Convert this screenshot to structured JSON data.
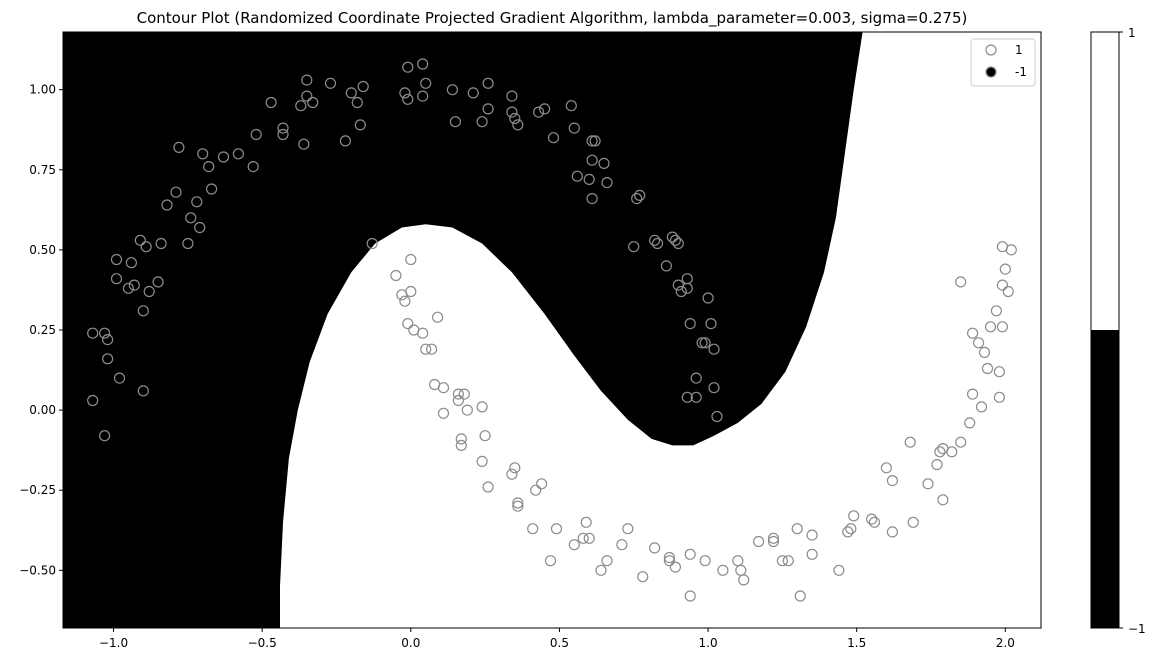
{
  "chart_data": {
    "type": "scatter",
    "title": "Contour Plot (Randomized Coordinate Projected Gradient Algorithm, lambda_parameter=0.003, sigma=0.275)",
    "xlabel": "",
    "ylabel": "",
    "xlim": [
      -1.17,
      2.12
    ],
    "ylim": [
      -0.68,
      1.18
    ],
    "x_ticks": [
      -1.0,
      -0.5,
      0.0,
      0.5,
      1.0,
      1.5,
      2.0
    ],
    "x_tick_labels": [
      "−1.0",
      "−0.5",
      "0.0",
      "0.5",
      "1.0",
      "1.5",
      "2.0"
    ],
    "y_ticks": [
      -0.5,
      -0.25,
      0.0,
      0.25,
      0.5,
      0.75,
      1.0
    ],
    "y_tick_labels": [
      "−0.50",
      "−0.25",
      "0.00",
      "0.25",
      "0.50",
      "0.75",
      "1.00"
    ],
    "grid": false,
    "legend_position": "top-right",
    "colors": {
      "region_neg": "#000000",
      "region_pos": "#ffffff",
      "marker_edge": "#8c8c8c",
      "marker_fill": "none"
    },
    "decision_region": {
      "description_free_fields": true,
      "boundary": [
        [
          -0.44,
          -0.68
        ],
        [
          -0.44,
          -0.55
        ],
        [
          -0.43,
          -0.35
        ],
        [
          -0.41,
          -0.15
        ],
        [
          -0.38,
          0.0
        ],
        [
          -0.34,
          0.15
        ],
        [
          -0.28,
          0.3
        ],
        [
          -0.2,
          0.43
        ],
        [
          -0.12,
          0.52
        ],
        [
          -0.03,
          0.57
        ],
        [
          0.05,
          0.58
        ],
        [
          0.14,
          0.57
        ],
        [
          0.24,
          0.52
        ],
        [
          0.34,
          0.43
        ],
        [
          0.45,
          0.3
        ],
        [
          0.55,
          0.17
        ],
        [
          0.64,
          0.06
        ],
        [
          0.73,
          -0.03
        ],
        [
          0.81,
          -0.09
        ],
        [
          0.88,
          -0.11
        ],
        [
          0.95,
          -0.11
        ],
        [
          1.02,
          -0.08
        ],
        [
          1.1,
          -0.04
        ],
        [
          1.18,
          0.02
        ],
        [
          1.26,
          0.12
        ],
        [
          1.33,
          0.26
        ],
        [
          1.39,
          0.43
        ],
        [
          1.43,
          0.6
        ],
        [
          1.46,
          0.8
        ],
        [
          1.49,
          1.0
        ],
        [
          1.52,
          1.18
        ]
      ]
    },
    "series": [
      {
        "name": "1",
        "marker": "open-circle",
        "points": [
          [
            -1.07,
            0.24
          ],
          [
            -1.07,
            0.03
          ],
          [
            -1.03,
            0.24
          ],
          [
            -1.02,
            0.16
          ],
          [
            -1.02,
            0.22
          ],
          [
            -1.03,
            -0.08
          ],
          [
            -0.99,
            0.47
          ],
          [
            -0.99,
            0.41
          ],
          [
            -0.98,
            0.1
          ],
          [
            -0.95,
            0.38
          ],
          [
            -0.94,
            0.46
          ],
          [
            -0.93,
            0.39
          ],
          [
            -0.91,
            0.53
          ],
          [
            -0.9,
            0.31
          ],
          [
            -0.9,
            0.06
          ],
          [
            -0.89,
            0.51
          ],
          [
            -0.88,
            0.37
          ],
          [
            -0.85,
            0.4
          ],
          [
            -0.84,
            0.52
          ],
          [
            -0.82,
            0.64
          ],
          [
            -0.79,
            0.68
          ],
          [
            -0.78,
            0.82
          ],
          [
            -0.75,
            0.52
          ],
          [
            -0.74,
            0.6
          ],
          [
            -0.72,
            0.65
          ],
          [
            -0.71,
            0.57
          ],
          [
            -0.7,
            0.8
          ],
          [
            -0.68,
            0.76
          ],
          [
            -0.67,
            0.69
          ],
          [
            -0.63,
            0.79
          ],
          [
            -0.58,
            0.8
          ],
          [
            -0.53,
            0.76
          ],
          [
            -0.52,
            0.86
          ],
          [
            -0.47,
            0.96
          ],
          [
            -0.43,
            0.86
          ],
          [
            -0.43,
            0.88
          ],
          [
            -0.37,
            0.95
          ],
          [
            -0.36,
            0.83
          ],
          [
            -0.35,
            0.98
          ],
          [
            -0.35,
            1.03
          ],
          [
            -0.33,
            0.96
          ],
          [
            -0.27,
            1.02
          ],
          [
            -0.22,
            0.84
          ],
          [
            -0.2,
            0.99
          ],
          [
            -0.18,
            0.96
          ],
          [
            -0.17,
            0.89
          ],
          [
            -0.16,
            1.01
          ],
          [
            -0.02,
            0.99
          ],
          [
            -0.01,
            0.97
          ],
          [
            -0.01,
            1.07
          ],
          [
            0.04,
            0.98
          ],
          [
            0.04,
            1.08
          ],
          [
            0.05,
            1.02
          ],
          [
            0.14,
            1.0
          ],
          [
            0.15,
            0.9
          ],
          [
            0.21,
            0.99
          ],
          [
            0.24,
            0.9
          ],
          [
            0.26,
            0.94
          ],
          [
            0.26,
            1.02
          ],
          [
            0.34,
            0.98
          ],
          [
            0.34,
            0.93
          ],
          [
            0.35,
            0.91
          ],
          [
            0.36,
            0.89
          ],
          [
            0.43,
            0.93
          ],
          [
            0.45,
            0.94
          ],
          [
            0.48,
            0.85
          ],
          [
            0.54,
            0.95
          ],
          [
            0.55,
            0.88
          ],
          [
            0.56,
            0.73
          ],
          [
            0.6,
            0.72
          ],
          [
            0.61,
            0.84
          ],
          [
            0.61,
            0.78
          ],
          [
            0.61,
            0.66
          ],
          [
            0.62,
            0.84
          ],
          [
            0.65,
            0.77
          ],
          [
            0.66,
            0.71
          ],
          [
            0.76,
            0.66
          ],
          [
            0.77,
            0.67
          ],
          [
            0.75,
            0.51
          ],
          [
            0.82,
            0.53
          ],
          [
            0.83,
            0.52
          ],
          [
            0.86,
            0.45
          ],
          [
            0.88,
            0.54
          ],
          [
            0.89,
            0.53
          ],
          [
            0.9,
            0.52
          ],
          [
            0.9,
            0.39
          ],
          [
            0.91,
            0.37
          ],
          [
            0.93,
            0.41
          ],
          [
            0.93,
            0.38
          ],
          [
            0.94,
            0.27
          ],
          [
            0.96,
            0.1
          ],
          [
            0.93,
            0.04
          ],
          [
            0.96,
            0.04
          ],
          [
            0.98,
            0.21
          ],
          [
            0.99,
            0.21
          ],
          [
            1.0,
            0.35
          ],
          [
            1.01,
            0.27
          ],
          [
            1.02,
            0.19
          ],
          [
            1.02,
            0.07
          ],
          [
            1.03,
            -0.02
          ],
          [
            -0.13,
            0.52
          ],
          [
            -0.05,
            0.42
          ],
          [
            -0.03,
            0.36
          ],
          [
            -0.02,
            0.34
          ],
          [
            -0.01,
            0.27
          ],
          [
            0.0,
            0.37
          ],
          [
            0.0,
            0.47
          ],
          [
            0.01,
            0.25
          ],
          [
            0.04,
            0.24
          ],
          [
            0.05,
            0.19
          ],
          [
            0.07,
            0.19
          ],
          [
            0.08,
            0.08
          ],
          [
            0.09,
            0.29
          ],
          [
            0.11,
            0.07
          ],
          [
            0.11,
            -0.01
          ],
          [
            0.16,
            0.03
          ],
          [
            0.16,
            0.05
          ],
          [
            0.18,
            0.05
          ],
          [
            0.17,
            -0.09
          ],
          [
            0.17,
            -0.11
          ],
          [
            0.19,
            0.0
          ],
          [
            0.24,
            0.01
          ],
          [
            0.25,
            -0.08
          ],
          [
            0.24,
            -0.16
          ],
          [
            0.26,
            -0.24
          ],
          [
            0.34,
            -0.2
          ],
          [
            0.35,
            -0.18
          ],
          [
            0.36,
            -0.3
          ],
          [
            0.36,
            -0.29
          ],
          [
            0.41,
            -0.37
          ],
          [
            0.42,
            -0.25
          ],
          [
            0.44,
            -0.23
          ],
          [
            0.47,
            -0.47
          ],
          [
            0.49,
            -0.37
          ],
          [
            0.55,
            -0.42
          ],
          [
            0.58,
            -0.4
          ],
          [
            0.59,
            -0.35
          ],
          [
            0.6,
            -0.4
          ],
          [
            0.64,
            -0.5
          ],
          [
            0.66,
            -0.47
          ],
          [
            0.71,
            -0.42
          ],
          [
            0.73,
            -0.37
          ],
          [
            0.78,
            -0.52
          ],
          [
            0.82,
            -0.43
          ],
          [
            0.87,
            -0.47
          ],
          [
            0.87,
            -0.46
          ],
          [
            0.89,
            -0.49
          ],
          [
            0.94,
            -0.45
          ],
          [
            0.94,
            -0.58
          ],
          [
            0.99,
            -0.47
          ],
          [
            1.05,
            -0.5
          ],
          [
            1.1,
            -0.47
          ],
          [
            1.11,
            -0.5
          ],
          [
            1.12,
            -0.53
          ],
          [
            1.17,
            -0.41
          ],
          [
            1.22,
            -0.41
          ],
          [
            1.22,
            -0.4
          ],
          [
            1.25,
            -0.47
          ],
          [
            1.27,
            -0.47
          ],
          [
            1.3,
            -0.37
          ],
          [
            1.31,
            -0.58
          ],
          [
            1.35,
            -0.45
          ],
          [
            1.35,
            -0.39
          ],
          [
            1.44,
            -0.5
          ],
          [
            1.47,
            -0.38
          ],
          [
            1.48,
            -0.37
          ],
          [
            1.49,
            -0.33
          ],
          [
            1.55,
            -0.34
          ],
          [
            1.56,
            -0.35
          ],
          [
            1.6,
            -0.18
          ],
          [
            1.62,
            -0.22
          ],
          [
            1.62,
            -0.38
          ],
          [
            1.68,
            -0.1
          ],
          [
            1.69,
            -0.35
          ],
          [
            1.74,
            -0.23
          ],
          [
            1.77,
            -0.17
          ],
          [
            1.78,
            -0.13
          ],
          [
            1.79,
            -0.12
          ],
          [
            1.79,
            -0.28
          ],
          [
            1.82,
            -0.13
          ],
          [
            1.85,
            -0.1
          ],
          [
            1.85,
            0.4
          ],
          [
            1.88,
            -0.04
          ],
          [
            1.89,
            0.05
          ],
          [
            1.89,
            0.24
          ],
          [
            1.91,
            0.21
          ],
          [
            1.92,
            0.01
          ],
          [
            1.93,
            0.18
          ],
          [
            1.94,
            0.13
          ],
          [
            1.95,
            0.26
          ],
          [
            1.97,
            0.31
          ],
          [
            1.98,
            0.12
          ],
          [
            1.98,
            0.04
          ],
          [
            1.99,
            0.26
          ],
          [
            1.99,
            0.51
          ],
          [
            1.99,
            0.39
          ],
          [
            2.0,
            0.44
          ],
          [
            2.01,
            0.37
          ],
          [
            2.02,
            0.5
          ]
        ]
      }
    ],
    "legend_entries": [
      {
        "label": "1",
        "marker": "open-circle"
      },
      {
        "label": "-1",
        "marker": "filled-circle"
      }
    ],
    "colorbar": {
      "range": [
        -1,
        1
      ],
      "tick_labels": [
        "−1",
        "1"
      ],
      "split_fraction": 0.5,
      "lower_color": "#000000",
      "upper_color": "#ffffff"
    }
  }
}
